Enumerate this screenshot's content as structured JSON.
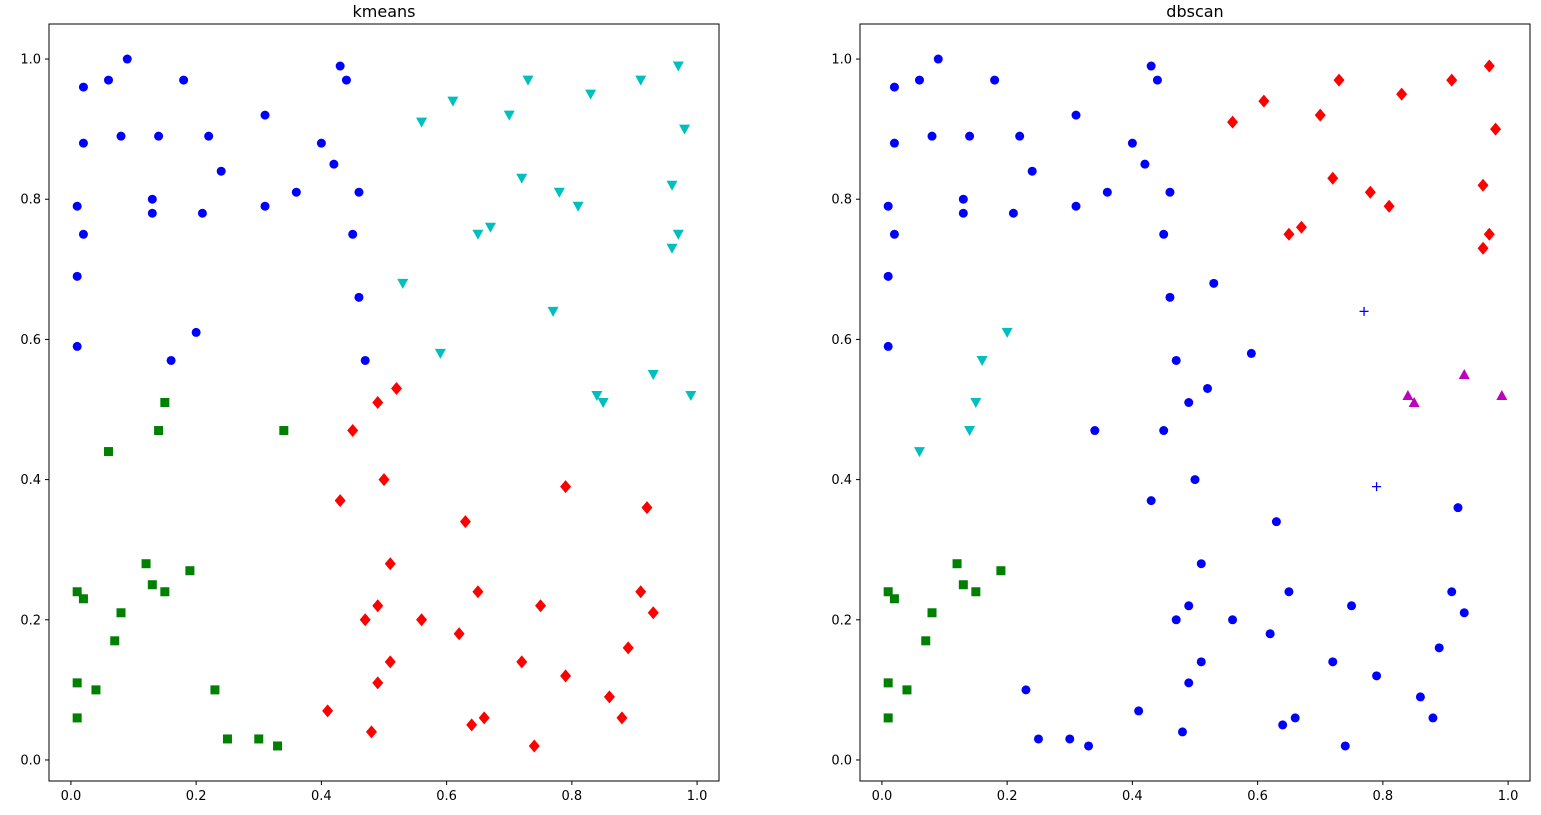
{
  "figure": {
    "background": "#ffffff"
  },
  "chart_data": [
    {
      "type": "scatter",
      "title": "kmeans",
      "xlabel": "",
      "ylabel": "",
      "xlim": [
        -0.035,
        1.035
      ],
      "ylim": [
        -0.03,
        1.05
      ],
      "xticks": [
        "0.0",
        "0.2",
        "0.4",
        "0.6",
        "0.8",
        "1.0"
      ],
      "yticks": [
        "0.0",
        "0.2",
        "0.4",
        "0.6",
        "0.8",
        "1.0"
      ],
      "grid": false,
      "legend": false,
      "series": [
        {
          "marker": "circle",
          "color": "#0000ff",
          "points": [
            [
              0.09,
              1.0
            ],
            [
              0.02,
              0.96
            ],
            [
              0.06,
              0.97
            ],
            [
              0.18,
              0.97
            ],
            [
              0.43,
              0.99
            ],
            [
              0.44,
              0.97
            ],
            [
              0.02,
              0.88
            ],
            [
              0.08,
              0.89
            ],
            [
              0.14,
              0.89
            ],
            [
              0.22,
              0.89
            ],
            [
              0.31,
              0.92
            ],
            [
              0.4,
              0.88
            ],
            [
              0.42,
              0.85
            ],
            [
              0.24,
              0.84
            ],
            [
              0.01,
              0.79
            ],
            [
              0.02,
              0.75
            ],
            [
              0.13,
              0.8
            ],
            [
              0.13,
              0.78
            ],
            [
              0.21,
              0.78
            ],
            [
              0.31,
              0.79
            ],
            [
              0.36,
              0.81
            ],
            [
              0.46,
              0.81
            ],
            [
              0.45,
              0.75
            ],
            [
              0.01,
              0.69
            ],
            [
              0.46,
              0.66
            ],
            [
              0.2,
              0.61
            ],
            [
              0.01,
              0.59
            ],
            [
              0.16,
              0.57
            ],
            [
              0.47,
              0.57
            ]
          ]
        },
        {
          "marker": "triangle-down",
          "color": "#00bfbf",
          "points": [
            [
              0.97,
              0.99
            ],
            [
              0.73,
              0.97
            ],
            [
              0.91,
              0.97
            ],
            [
              0.83,
              0.95
            ],
            [
              0.61,
              0.94
            ],
            [
              0.7,
              0.92
            ],
            [
              0.56,
              0.91
            ],
            [
              0.98,
              0.9
            ],
            [
              0.72,
              0.83
            ],
            [
              0.78,
              0.81
            ],
            [
              0.96,
              0.82
            ],
            [
              0.81,
              0.79
            ],
            [
              0.65,
              0.75
            ],
            [
              0.67,
              0.76
            ],
            [
              0.97,
              0.75
            ],
            [
              0.96,
              0.73
            ],
            [
              0.53,
              0.68
            ],
            [
              0.77,
              0.64
            ],
            [
              0.59,
              0.58
            ],
            [
              0.93,
              0.55
            ],
            [
              0.84,
              0.52
            ],
            [
              0.85,
              0.51
            ],
            [
              0.99,
              0.52
            ]
          ]
        },
        {
          "marker": "diamond",
          "color": "#ff0000",
          "points": [
            [
              0.52,
              0.53
            ],
            [
              0.49,
              0.51
            ],
            [
              0.45,
              0.47
            ],
            [
              0.5,
              0.4
            ],
            [
              0.79,
              0.39
            ],
            [
              0.43,
              0.37
            ],
            [
              0.92,
              0.36
            ],
            [
              0.63,
              0.34
            ],
            [
              0.51,
              0.28
            ],
            [
              0.65,
              0.24
            ],
            [
              0.91,
              0.24
            ],
            [
              0.49,
              0.22
            ],
            [
              0.75,
              0.22
            ],
            [
              0.93,
              0.21
            ],
            [
              0.47,
              0.2
            ],
            [
              0.56,
              0.2
            ],
            [
              0.62,
              0.18
            ],
            [
              0.89,
              0.16
            ],
            [
              0.51,
              0.14
            ],
            [
              0.72,
              0.14
            ],
            [
              0.79,
              0.12
            ],
            [
              0.49,
              0.11
            ],
            [
              0.86,
              0.09
            ],
            [
              0.41,
              0.07
            ],
            [
              0.66,
              0.06
            ],
            [
              0.88,
              0.06
            ],
            [
              0.64,
              0.05
            ],
            [
              0.48,
              0.04
            ],
            [
              0.74,
              0.02
            ]
          ]
        },
        {
          "marker": "square",
          "color": "#008000",
          "points": [
            [
              0.15,
              0.51
            ],
            [
              0.14,
              0.47
            ],
            [
              0.34,
              0.47
            ],
            [
              0.06,
              0.44
            ],
            [
              0.12,
              0.28
            ],
            [
              0.19,
              0.27
            ],
            [
              0.13,
              0.25
            ],
            [
              0.01,
              0.24
            ],
            [
              0.15,
              0.24
            ],
            [
              0.02,
              0.23
            ],
            [
              0.08,
              0.21
            ],
            [
              0.07,
              0.17
            ],
            [
              0.01,
              0.11
            ],
            [
              0.04,
              0.1
            ],
            [
              0.23,
              0.1
            ],
            [
              0.01,
              0.06
            ],
            [
              0.25,
              0.03
            ],
            [
              0.3,
              0.03
            ],
            [
              0.33,
              0.02
            ]
          ]
        }
      ]
    },
    {
      "type": "scatter",
      "title": "dbscan",
      "xlabel": "",
      "ylabel": "",
      "xlim": [
        -0.035,
        1.035
      ],
      "ylim": [
        -0.03,
        1.05
      ],
      "xticks": [
        "0.0",
        "0.2",
        "0.4",
        "0.6",
        "0.8",
        "1.0"
      ],
      "yticks": [
        "0.0",
        "0.2",
        "0.4",
        "0.6",
        "0.8",
        "1.0"
      ],
      "grid": false,
      "legend": false,
      "series": [
        {
          "marker": "circle",
          "color": "#0000ff",
          "points": [
            [
              0.09,
              1.0
            ],
            [
              0.02,
              0.96
            ],
            [
              0.06,
              0.97
            ],
            [
              0.18,
              0.97
            ],
            [
              0.43,
              0.99
            ],
            [
              0.44,
              0.97
            ],
            [
              0.02,
              0.88
            ],
            [
              0.08,
              0.89
            ],
            [
              0.14,
              0.89
            ],
            [
              0.22,
              0.89
            ],
            [
              0.31,
              0.92
            ],
            [
              0.4,
              0.88
            ],
            [
              0.42,
              0.85
            ],
            [
              0.24,
              0.84
            ],
            [
              0.01,
              0.79
            ],
            [
              0.02,
              0.75
            ],
            [
              0.13,
              0.8
            ],
            [
              0.13,
              0.78
            ],
            [
              0.21,
              0.78
            ],
            [
              0.31,
              0.79
            ],
            [
              0.36,
              0.81
            ],
            [
              0.46,
              0.81
            ],
            [
              0.45,
              0.75
            ],
            [
              0.01,
              0.69
            ],
            [
              0.46,
              0.66
            ],
            [
              0.01,
              0.59
            ],
            [
              0.47,
              0.57
            ],
            [
              0.53,
              0.68
            ],
            [
              0.59,
              0.58
            ],
            [
              0.52,
              0.53
            ],
            [
              0.49,
              0.51
            ],
            [
              0.45,
              0.47
            ],
            [
              0.34,
              0.47
            ],
            [
              0.5,
              0.4
            ],
            [
              0.43,
              0.37
            ],
            [
              0.92,
              0.36
            ],
            [
              0.63,
              0.34
            ],
            [
              0.51,
              0.28
            ],
            [
              0.65,
              0.24
            ],
            [
              0.91,
              0.24
            ],
            [
              0.49,
              0.22
            ],
            [
              0.75,
              0.22
            ],
            [
              0.93,
              0.21
            ],
            [
              0.47,
              0.2
            ],
            [
              0.56,
              0.2
            ],
            [
              0.62,
              0.18
            ],
            [
              0.89,
              0.16
            ],
            [
              0.51,
              0.14
            ],
            [
              0.72,
              0.14
            ],
            [
              0.79,
              0.12
            ],
            [
              0.49,
              0.11
            ],
            [
              0.23,
              0.1
            ],
            [
              0.86,
              0.09
            ],
            [
              0.41,
              0.07
            ],
            [
              0.66,
              0.06
            ],
            [
              0.88,
              0.06
            ],
            [
              0.64,
              0.05
            ],
            [
              0.48,
              0.04
            ],
            [
              0.25,
              0.03
            ],
            [
              0.3,
              0.03
            ],
            [
              0.33,
              0.02
            ],
            [
              0.74,
              0.02
            ]
          ]
        },
        {
          "marker": "diamond",
          "color": "#ff0000",
          "points": [
            [
              0.97,
              0.99
            ],
            [
              0.73,
              0.97
            ],
            [
              0.91,
              0.97
            ],
            [
              0.83,
              0.95
            ],
            [
              0.61,
              0.94
            ],
            [
              0.7,
              0.92
            ],
            [
              0.56,
              0.91
            ],
            [
              0.98,
              0.9
            ],
            [
              0.72,
              0.83
            ],
            [
              0.78,
              0.81
            ],
            [
              0.96,
              0.82
            ],
            [
              0.81,
              0.79
            ],
            [
              0.65,
              0.75
            ],
            [
              0.67,
              0.76
            ],
            [
              0.97,
              0.75
            ],
            [
              0.96,
              0.73
            ]
          ]
        },
        {
          "marker": "triangle-down",
          "color": "#00bfbf",
          "points": [
            [
              0.2,
              0.61
            ],
            [
              0.16,
              0.57
            ],
            [
              0.15,
              0.51
            ],
            [
              0.14,
              0.47
            ],
            [
              0.06,
              0.44
            ]
          ]
        },
        {
          "marker": "triangle-up",
          "color": "#bf00bf",
          "points": [
            [
              0.93,
              0.55
            ],
            [
              0.84,
              0.52
            ],
            [
              0.85,
              0.51
            ],
            [
              0.99,
              0.52
            ]
          ]
        },
        {
          "marker": "plus",
          "color": "#0000ff",
          "points": [
            [
              0.77,
              0.64
            ],
            [
              0.79,
              0.39
            ]
          ]
        },
        {
          "marker": "square",
          "color": "#008000",
          "points": [
            [
              0.12,
              0.28
            ],
            [
              0.19,
              0.27
            ],
            [
              0.13,
              0.25
            ],
            [
              0.01,
              0.24
            ],
            [
              0.15,
              0.24
            ],
            [
              0.02,
              0.23
            ],
            [
              0.08,
              0.21
            ],
            [
              0.07,
              0.17
            ],
            [
              0.01,
              0.11
            ],
            [
              0.04,
              0.1
            ],
            [
              0.01,
              0.06
            ]
          ]
        }
      ]
    }
  ]
}
